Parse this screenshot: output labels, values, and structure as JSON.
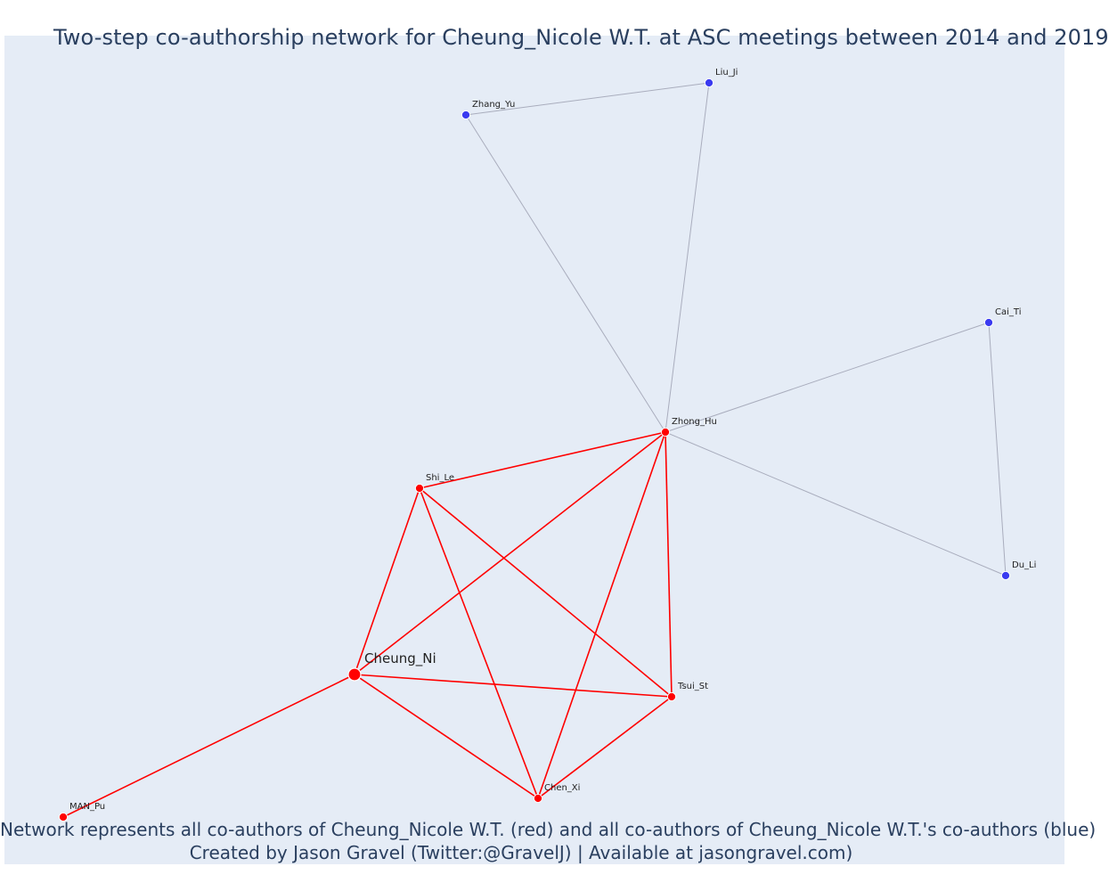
{
  "title": "Two-step co-authorship network for Cheung_Nicole W.T. at ASC meetings between 2014 and 2019",
  "caption": {
    "line1": "Network represents all co-authors of Cheung_Nicole W.T. (red) and all co-authors of Cheung_Nicole W.T.'s co-authors (blue)",
    "line2": "Created by Jason Gravel (Twitter:@GravelJ) | Available at jasongravel.com)"
  },
  "colors": {
    "background": "#e5ecf6",
    "first_degree": "#ff0000",
    "second_degree": "#3a3af0",
    "second_degree_edge": "#a9adbd",
    "text": "#2a3f5f"
  },
  "chart_data": {
    "type": "network",
    "nodes": [
      {
        "id": "Cheung_Ni",
        "label": "Cheung_Ni",
        "group": "ego"
      },
      {
        "id": "Shi_Le",
        "label": "Shi_Le",
        "group": "first"
      },
      {
        "id": "Zhong_Hu",
        "label": "Zhong_Hu",
        "group": "first"
      },
      {
        "id": "Tsui_St",
        "label": "Tsui_St",
        "group": "first"
      },
      {
        "id": "Chen_Xi",
        "label": "Chen_Xi",
        "group": "first"
      },
      {
        "id": "MAN_Pu",
        "label": "MAN_Pu",
        "group": "first"
      },
      {
        "id": "Zhang_Yu",
        "label": "Zhang_Yu",
        "group": "second"
      },
      {
        "id": "Liu_Ji",
        "label": "Liu_Ji",
        "group": "second"
      },
      {
        "id": "Cai_Ti",
        "label": "Cai_Ti",
        "group": "second"
      },
      {
        "id": "Du_Li",
        "label": "Du_Li",
        "group": "second"
      }
    ],
    "edges": [
      {
        "source": "Cheung_Ni",
        "target": "MAN_Pu",
        "type": "first"
      },
      {
        "source": "Cheung_Ni",
        "target": "Shi_Le",
        "type": "first"
      },
      {
        "source": "Cheung_Ni",
        "target": "Zhong_Hu",
        "type": "first"
      },
      {
        "source": "Cheung_Ni",
        "target": "Tsui_St",
        "type": "first"
      },
      {
        "source": "Cheung_Ni",
        "target": "Chen_Xi",
        "type": "first"
      },
      {
        "source": "Shi_Le",
        "target": "Zhong_Hu",
        "type": "first"
      },
      {
        "source": "Shi_Le",
        "target": "Tsui_St",
        "type": "first"
      },
      {
        "source": "Shi_Le",
        "target": "Chen_Xi",
        "type": "first"
      },
      {
        "source": "Zhong_Hu",
        "target": "Tsui_St",
        "type": "first"
      },
      {
        "source": "Zhong_Hu",
        "target": "Chen_Xi",
        "type": "first"
      },
      {
        "source": "Tsui_St",
        "target": "Chen_Xi",
        "type": "first"
      },
      {
        "source": "Zhong_Hu",
        "target": "Zhang_Yu",
        "type": "second"
      },
      {
        "source": "Zhong_Hu",
        "target": "Liu_Ji",
        "type": "second"
      },
      {
        "source": "Zhang_Yu",
        "target": "Liu_Ji",
        "type": "second"
      },
      {
        "source": "Zhong_Hu",
        "target": "Cai_Ti",
        "type": "second"
      },
      {
        "source": "Zhong_Hu",
        "target": "Du_Li",
        "type": "second"
      },
      {
        "source": "Cai_Ti",
        "target": "Du_Li",
        "type": "second"
      }
    ]
  }
}
